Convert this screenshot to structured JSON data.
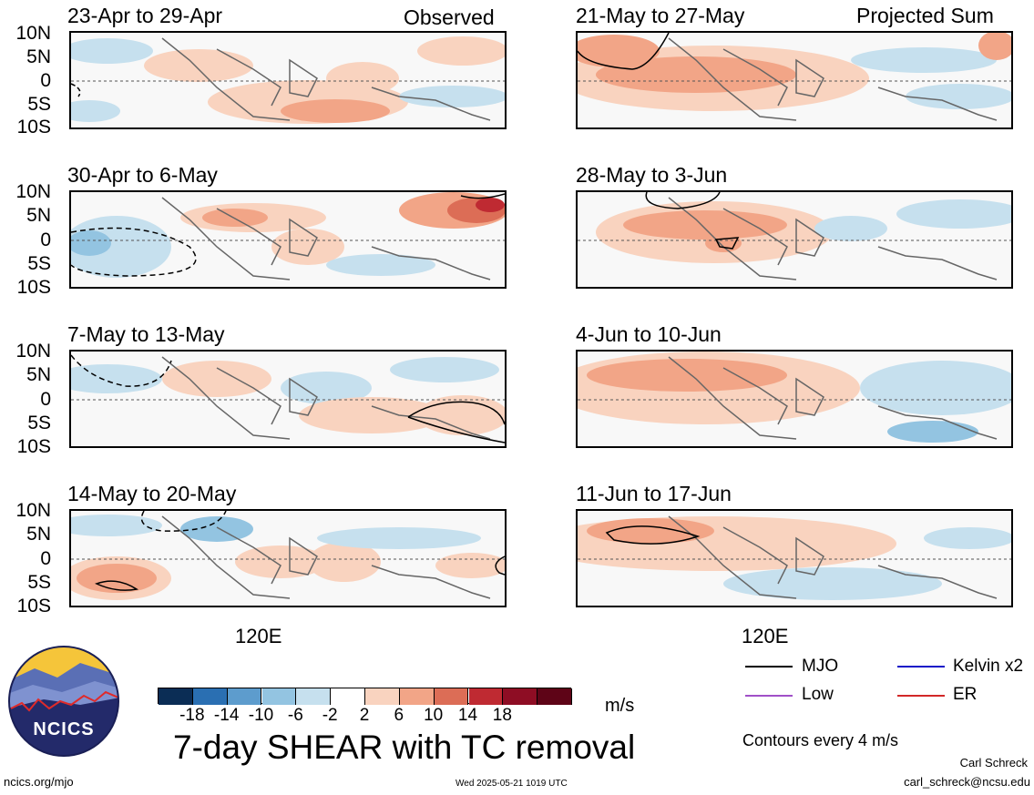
{
  "column_labels": {
    "left": "Observed",
    "right": "Projected Sum"
  },
  "lat_labels": [
    "10N",
    "5N",
    "0",
    "5S",
    "10S"
  ],
  "lon_label": "120E",
  "panels": [
    {
      "title": "23-Apr to 29-Apr"
    },
    {
      "title": "30-Apr to 6-May"
    },
    {
      "title": "7-May to 13-May"
    },
    {
      "title": "14-May to 20-May"
    },
    {
      "title": "21-May to 27-May"
    },
    {
      "title": "28-May to 3-Jun"
    },
    {
      "title": "4-Jun to 10-Jun"
    },
    {
      "title": "11-Jun to 17-Jun"
    }
  ],
  "colorbar": {
    "ticks": [
      "-18",
      "-14",
      "-10",
      "-6",
      "-2",
      "2",
      "6",
      "10",
      "14",
      "18"
    ],
    "colors": [
      "#0b2d55",
      "#2a6fb2",
      "#5d9ccd",
      "#93c4e1",
      "#c6e0ee",
      "#ffffff",
      "#f9d3bf",
      "#f2a587",
      "#dc6d56",
      "#bf2a32",
      "#8e0d24",
      "#5e0417"
    ],
    "unit": "m/s"
  },
  "legend": {
    "items": [
      {
        "label": "MJO",
        "color": "#000000"
      },
      {
        "label": "Kelvin x2",
        "color": "#1414c8"
      },
      {
        "label": "Low",
        "color": "#a050c8"
      },
      {
        "label": "ER",
        "color": "#d22828"
      }
    ],
    "note": "Contours every 4 m/s"
  },
  "logo": {
    "text": "NCICS"
  },
  "main_title": "7-day SHEAR with TC removal",
  "footer": {
    "url": "ncics.org/mjo",
    "timestamp": "Wed 2025-05-21 1019 UTC",
    "author": "Carl Schreck",
    "email": "carl_schreck@ncsu.edu"
  }
}
